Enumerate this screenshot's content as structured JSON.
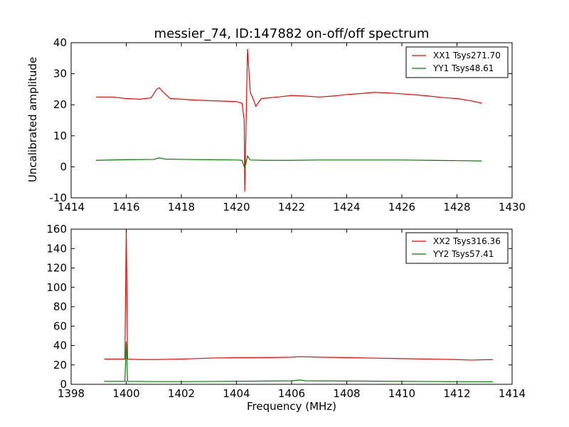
{
  "title": "messier_74, ID:147882 on-off/off spectrum",
  "ylabel": "Uncalibrated amplitude",
  "xlabel": "Frequency (MHz)",
  "colors": {
    "xx": "#ff0000",
    "yy": "#008000"
  },
  "chart_data": [
    {
      "type": "line",
      "xlim": [
        1414,
        1430
      ],
      "ylim": [
        -10,
        40
      ],
      "xticks": [
        1414,
        1416,
        1418,
        1420,
        1422,
        1424,
        1426,
        1428,
        1430
      ],
      "yticks": [
        -10,
        0,
        10,
        20,
        30,
        40
      ],
      "legend_position": "top-right",
      "series": [
        {
          "name": "XX1 Tsys271.70",
          "color": "#ff0000",
          "x": [
            1414.9,
            1415.5,
            1416.0,
            1416.5,
            1416.9,
            1417.1,
            1417.2,
            1417.35,
            1417.6,
            1418.0,
            1418.5,
            1419.0,
            1419.5,
            1420.0,
            1420.2,
            1420.28,
            1420.3,
            1420.35,
            1420.4,
            1420.5,
            1420.6,
            1420.7,
            1420.9,
            1421.5,
            1422.0,
            1422.5,
            1423.0,
            1423.5,
            1424.0,
            1424.5,
            1425.0,
            1425.5,
            1426.0,
            1426.5,
            1427.0,
            1427.5,
            1428.0,
            1428.5,
            1428.9
          ],
          "y": [
            22.5,
            22.5,
            22.0,
            21.8,
            22.2,
            25.0,
            25.5,
            24.0,
            22.0,
            21.8,
            21.5,
            21.3,
            21.2,
            21.0,
            20.5,
            15.0,
            -8.0,
            15.0,
            38.0,
            24.0,
            22.0,
            19.5,
            22.0,
            22.5,
            23.0,
            22.8,
            22.5,
            22.8,
            23.3,
            23.6,
            24.0,
            23.8,
            23.5,
            23.2,
            22.8,
            22.3,
            22.0,
            21.3,
            20.5
          ]
        },
        {
          "name": "YY1 Tsys48.61",
          "color": "#008000",
          "x": [
            1414.9,
            1416.0,
            1417.0,
            1417.2,
            1417.4,
            1418.0,
            1419.0,
            1420.0,
            1420.2,
            1420.3,
            1420.35,
            1420.4,
            1420.5,
            1421.0,
            1422.0,
            1423.0,
            1424.0,
            1425.0,
            1426.0,
            1427.0,
            1428.0,
            1428.9
          ],
          "y": [
            2.1,
            2.3,
            2.4,
            2.9,
            2.5,
            2.4,
            2.3,
            2.2,
            2.1,
            -0.5,
            1.5,
            3.5,
            2.2,
            2.1,
            2.1,
            2.2,
            2.2,
            2.2,
            2.2,
            2.1,
            2.0,
            1.9
          ]
        }
      ]
    },
    {
      "type": "line",
      "xlim": [
        1398,
        1414
      ],
      "ylim": [
        0,
        160
      ],
      "xticks": [
        1398,
        1400,
        1402,
        1404,
        1406,
        1408,
        1410,
        1412,
        1414
      ],
      "yticks": [
        0,
        20,
        40,
        60,
        80,
        100,
        120,
        140,
        160
      ],
      "legend_position": "top-right",
      "series": [
        {
          "name": "XX2 Tsys316.36",
          "color": "#ff0000",
          "x": [
            1399.2,
            1399.6,
            1399.95,
            1400.0,
            1400.05,
            1400.5,
            1401.0,
            1402.0,
            1403.0,
            1404.0,
            1405.0,
            1406.0,
            1406.3,
            1407.0,
            1408.0,
            1409.0,
            1410.0,
            1411.0,
            1412.0,
            1412.5,
            1413.3
          ],
          "y": [
            26.0,
            26.0,
            26.0,
            160.0,
            26.0,
            25.5,
            25.5,
            26.0,
            27.0,
            27.5,
            27.5,
            28.0,
            28.5,
            28.0,
            27.5,
            27.0,
            26.5,
            26.0,
            25.5,
            25.0,
            25.5
          ]
        },
        {
          "name": "YY2 Tsys57.41",
          "color": "#008000",
          "x": [
            1399.2,
            1399.95,
            1400.0,
            1400.05,
            1401.0,
            1402.0,
            1403.0,
            1404.0,
            1405.0,
            1406.0,
            1406.3,
            1406.5,
            1407.0,
            1408.0,
            1409.0,
            1410.0,
            1411.0,
            1412.0,
            1413.3
          ],
          "y": [
            3.0,
            3.0,
            44.0,
            3.0,
            2.8,
            2.8,
            2.9,
            3.1,
            3.3,
            3.6,
            4.5,
            3.6,
            3.5,
            3.4,
            3.2,
            3.0,
            2.9,
            2.7,
            2.6
          ]
        }
      ]
    }
  ]
}
